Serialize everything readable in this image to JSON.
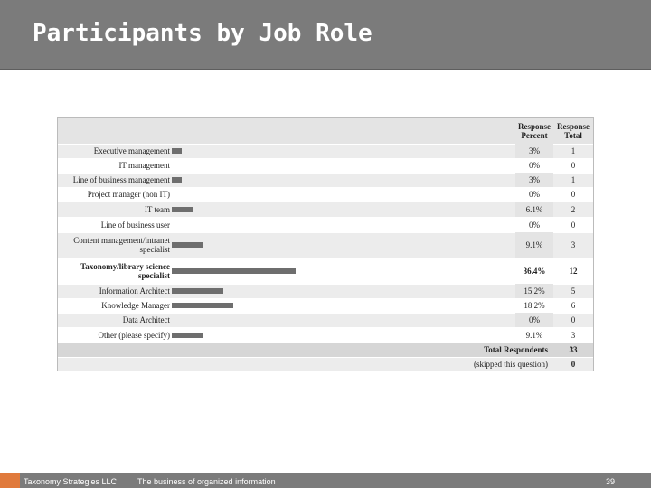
{
  "header": {
    "title": "Participants by Job Role"
  },
  "table": {
    "columns": [
      "Response Percent",
      "Response Total"
    ],
    "rows": [
      {
        "label": "Executive management",
        "percent": {
          "value": 3,
          "label": "3%"
        },
        "total": 1
      },
      {
        "label": "IT management",
        "percent": {
          "value": 0,
          "label": "0%"
        },
        "total": 0
      },
      {
        "label": "Line of business management",
        "percent": {
          "value": 3,
          "label": "3%"
        },
        "total": 1
      },
      {
        "label": "Project manager (non IT)",
        "percent": {
          "value": 0,
          "label": "0%"
        },
        "total": 0
      },
      {
        "label": "IT team",
        "percent": {
          "value": 6.1,
          "label": "6.1%"
        },
        "total": 2
      },
      {
        "label": "Line of business user",
        "percent": {
          "value": 0,
          "label": "0%"
        },
        "total": 0
      },
      {
        "label": "Content management/intranet specialist",
        "percent": {
          "value": 9.1,
          "label": "9.1%"
        },
        "total": 3
      },
      {
        "label": "Taxonomy/library science specialist",
        "percent": {
          "value": 36.4,
          "label": "36.4%"
        },
        "total": 12
      },
      {
        "label": "Information Architect",
        "percent": {
          "value": 15.2,
          "label": "15.2%"
        },
        "total": 5
      },
      {
        "label": "Knowledge Manager",
        "percent": {
          "value": 18.2,
          "label": "18.2%"
        },
        "total": 6
      },
      {
        "label": "Data Architect",
        "percent": {
          "value": 0,
          "label": "0%"
        },
        "total": 0
      },
      {
        "label": "Other (please specify)",
        "percent": {
          "value": 9.1,
          "label": "9.1%"
        },
        "total": 3
      }
    ],
    "summary": [
      {
        "label": "Total Respondents",
        "total": 33
      },
      {
        "label": "(skipped this question)",
        "total": 0
      }
    ]
  },
  "footer": {
    "company": "Taxonomy Strategies LLC",
    "tagline": "The business of organized information",
    "page": "39"
  }
}
